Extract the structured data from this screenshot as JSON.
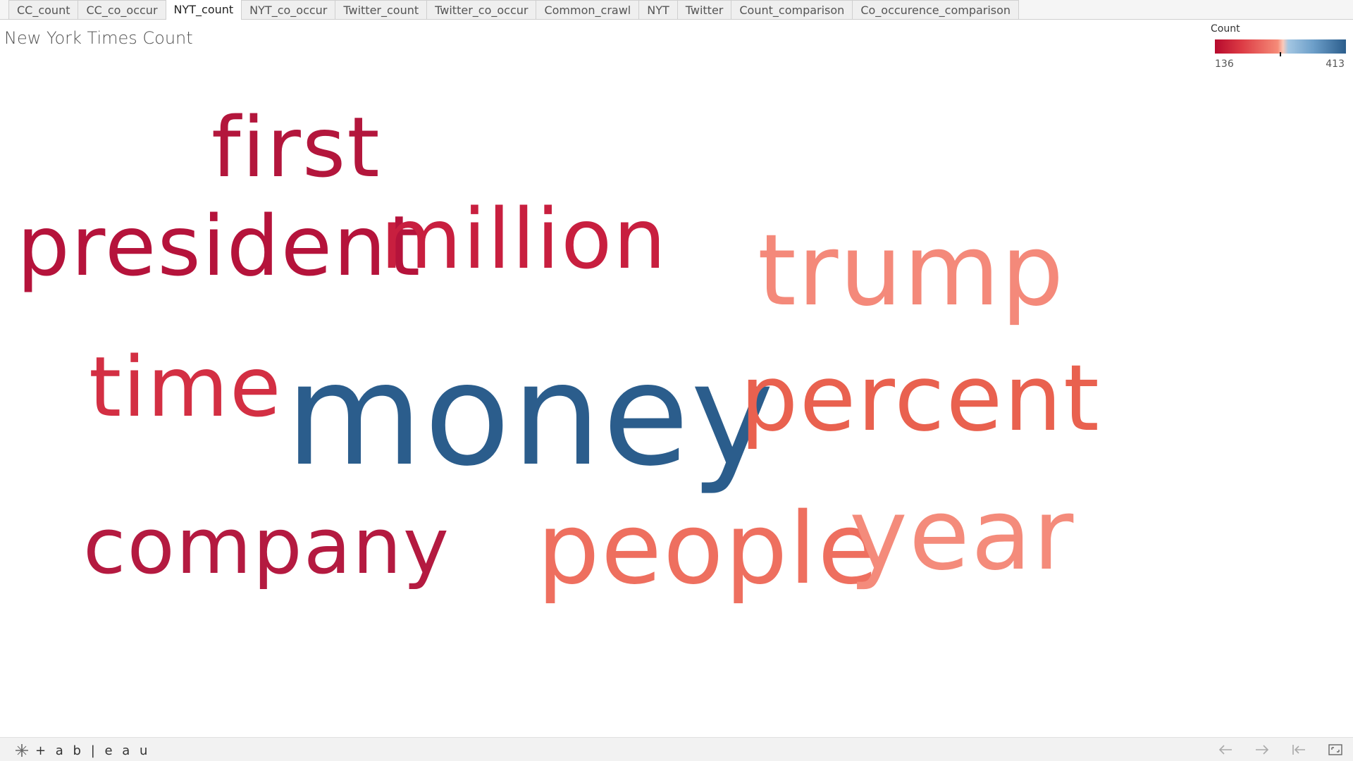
{
  "tabs": [
    {
      "label": "CC_count",
      "active": false
    },
    {
      "label": "CC_co_occur",
      "active": false
    },
    {
      "label": "NYT_count",
      "active": true
    },
    {
      "label": "NYT_co_occur",
      "active": false
    },
    {
      "label": "Twitter_count",
      "active": false
    },
    {
      "label": "Twitter_co_occur",
      "active": false
    },
    {
      "label": "Common_crawl",
      "active": false
    },
    {
      "label": "NYT",
      "active": false
    },
    {
      "label": "Twitter",
      "active": false
    },
    {
      "label": "Count_comparison",
      "active": false
    },
    {
      "label": "Co_occurence_comparison",
      "active": false
    }
  ],
  "page": {
    "title": "New York Times Count"
  },
  "legend": {
    "title": "Count",
    "min": "136",
    "max": "413"
  },
  "words": [
    {
      "id": "first",
      "text": "first",
      "color": "#b3163c"
    },
    {
      "id": "president",
      "text": "president",
      "color": "#b5133b"
    },
    {
      "id": "million",
      "text": "million",
      "color": "#c81f3f"
    },
    {
      "id": "trump",
      "text": "trump",
      "color": "#f4897a"
    },
    {
      "id": "time",
      "text": "time",
      "color": "#d32f43"
    },
    {
      "id": "money",
      "text": "money",
      "color": "#2b5d8c"
    },
    {
      "id": "percent",
      "text": "percent",
      "color": "#e9614f"
    },
    {
      "id": "company",
      "text": "company",
      "color": "#b41a40"
    },
    {
      "id": "people",
      "text": "people",
      "color": "#ee6f5f"
    },
    {
      "id": "year",
      "text": "year",
      "color": "#f48b7b"
    }
  ],
  "footer": {
    "brand": "+ a b | e a u",
    "icons": [
      "undo-icon",
      "redo-icon",
      "revert-icon",
      "fullscreen-icon"
    ]
  }
}
